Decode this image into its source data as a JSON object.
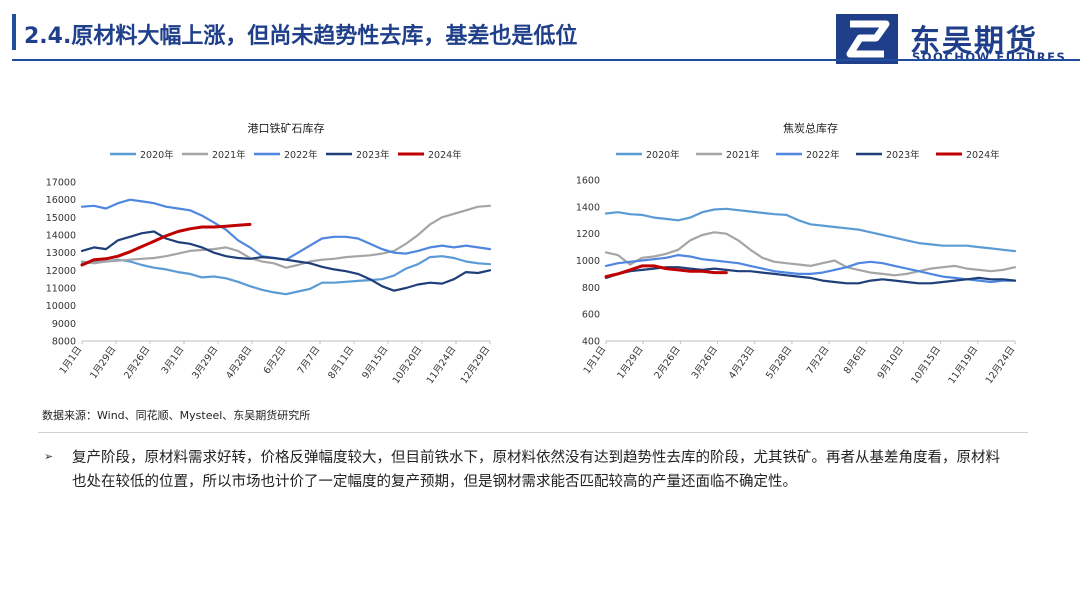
{
  "header": {
    "title": "2.4.原材料大幅上涨，但尚未趋势性去库，基差也是低位",
    "logo_cn": "东吴期货",
    "logo_en": "SOOCHOW FUTURES"
  },
  "colors": {
    "2020年": "#5b9bd5",
    "2021年": "#a5a5a5",
    "2022年": "#4f86e0",
    "2023年": "#1f3f7a",
    "2024年": "#c00000",
    "brand": "#1f3f8a"
  },
  "chart_data": [
    {
      "type": "line",
      "title": "港口铁矿石库存",
      "x_ticks": [
        "1月1日",
        "1月29日",
        "2月26日",
        "3月1日",
        "3月29日",
        "4月28日",
        "6月2日",
        "7月7日",
        "8月11日",
        "9月15日",
        "10月20日",
        "11月24日",
        "12月29日"
      ],
      "ylim": [
        8000,
        17000
      ],
      "y_ticks": [
        "17000",
        "16000",
        "15000",
        "14000",
        "13000",
        "12000",
        "11000",
        "10000",
        "9000",
        "8000"
      ],
      "legend_position": "top",
      "series": [
        {
          "name": "2020年",
          "values": [
            12400,
            12450,
            12500,
            12600,
            12500,
            12300,
            12150,
            12050,
            11900,
            11800,
            11600,
            11650,
            11550,
            11350,
            11100,
            10900,
            10750,
            10650,
            10800,
            10950,
            11300,
            11300,
            11350,
            11400,
            11450,
            11500,
            11700,
            12100,
            12350,
            12750,
            12800,
            12700,
            12500,
            12400,
            12350
          ]
        },
        {
          "name": "2021年",
          "values": [
            12500,
            12400,
            12500,
            12550,
            12600,
            12650,
            12700,
            12800,
            12950,
            13100,
            13150,
            13200,
            13300,
            13100,
            12700,
            12500,
            12400,
            12150,
            12300,
            12500,
            12600,
            12650,
            12750,
            12800,
            12850,
            12950,
            13100,
            13500,
            14000,
            14600,
            15000,
            15200,
            15400,
            15600,
            15650
          ]
        },
        {
          "name": "2022年",
          "values": [
            15600,
            15650,
            15500,
            15800,
            16000,
            15900,
            15800,
            15600,
            15500,
            15400,
            15100,
            14700,
            14300,
            13700,
            13300,
            12800,
            12700,
            12600,
            13000,
            13400,
            13800,
            13900,
            13900,
            13800,
            13500,
            13200,
            13000,
            12950,
            13100,
            13300,
            13400,
            13300,
            13400,
            13300,
            13200
          ]
        },
        {
          "name": "2023年",
          "values": [
            13100,
            13300,
            13200,
            13700,
            13900,
            14100,
            14200,
            13800,
            13600,
            13500,
            13300,
            13000,
            12800,
            12700,
            12650,
            12750,
            12700,
            12600,
            12500,
            12400,
            12200,
            12050,
            11950,
            11800,
            11500,
            11100,
            10850,
            11000,
            11200,
            11300,
            11250,
            11500,
            11900,
            11850,
            12000
          ]
        },
        {
          "name": "2024年",
          "values": [
            12300,
            12600,
            12650,
            12800,
            13050,
            13350,
            13650,
            13950,
            14200,
            14350,
            14450,
            14450,
            14500,
            14550,
            14600
          ]
        }
      ]
    },
    {
      "type": "line",
      "title": "焦炭总库存",
      "x_ticks": [
        "1月1日",
        "1月29日",
        "2月26日",
        "3月26日",
        "4月23日",
        "5月28日",
        "7月2日",
        "8月6日",
        "9月10日",
        "10月15日",
        "11月19日",
        "12月24日"
      ],
      "ylim": [
        400,
        1600
      ],
      "y_ticks": [
        "1600",
        "1400",
        "1200",
        "1000",
        "800",
        "600",
        "400"
      ],
      "legend_position": "top",
      "series": [
        {
          "name": "2020年",
          "values": [
            1350,
            1360,
            1345,
            1340,
            1320,
            1310,
            1300,
            1320,
            1360,
            1380,
            1385,
            1375,
            1365,
            1355,
            1345,
            1340,
            1300,
            1270,
            1260,
            1250,
            1240,
            1230,
            1210,
            1190,
            1170,
            1150,
            1130,
            1120,
            1110,
            1110,
            1110,
            1100,
            1090,
            1080,
            1070
          ]
        },
        {
          "name": "2021年",
          "values": [
            1060,
            1040,
            970,
            1020,
            1030,
            1050,
            1080,
            1150,
            1190,
            1210,
            1200,
            1150,
            1080,
            1020,
            990,
            980,
            970,
            960,
            980,
            1000,
            950,
            930,
            910,
            900,
            890,
            900,
            920,
            940,
            950,
            960,
            940,
            930,
            920,
            930,
            950
          ]
        },
        {
          "name": "2022年",
          "values": [
            960,
            980,
            990,
            1000,
            1010,
            1020,
            1040,
            1030,
            1010,
            1000,
            990,
            980,
            960,
            940,
            920,
            910,
            900,
            900,
            910,
            930,
            950,
            980,
            990,
            980,
            960,
            940,
            920,
            900,
            880,
            870,
            860,
            850,
            840,
            850,
            850
          ]
        },
        {
          "name": "2023年",
          "values": [
            870,
            900,
            920,
            930,
            940,
            950,
            950,
            940,
            930,
            940,
            930,
            920,
            920,
            910,
            900,
            890,
            880,
            870,
            850,
            840,
            830,
            830,
            850,
            860,
            850,
            840,
            830,
            830,
            840,
            850,
            860,
            870,
            860,
            860,
            850
          ]
        },
        {
          "name": "2024年",
          "values": [
            880,
            900,
            930,
            960,
            960,
            940,
            930,
            920,
            920,
            910,
            910
          ]
        }
      ]
    }
  ],
  "source": "数据来源：Wind、同花顺、Mysteel、东吴期货研究所",
  "bullet": "复产阶段，原材料需求好转，价格反弹幅度较大，但目前铁水下，原材料依然没有达到趋势性去库的阶段，尤其铁矿。再者从基差角度看，原材料也处在较低的位置，所以市场也计价了一定幅度的复产预期，但是钢材需求能否匹配较高的产量还面临不确定性。",
  "bullet_mark": "➢"
}
